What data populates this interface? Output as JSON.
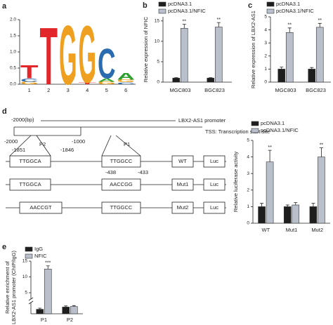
{
  "panel_labels": [
    "a",
    "b",
    "c",
    "d",
    "e"
  ],
  "chart_data": [
    {
      "type": "logo",
      "categories": [
        "1",
        "2",
        "3",
        "4",
        "5",
        "6"
      ],
      "ylim": [
        0,
        2
      ],
      "yticks": [
        {
          "value": 0,
          "label": "0.0"
        },
        {
          "value": 0.5,
          "label": "0.5"
        },
        {
          "value": 1,
          "label": "1.0"
        },
        {
          "value": 1.5,
          "label": "1.5"
        },
        {
          "value": 2,
          "label": "2.0"
        }
      ],
      "positions": [
        [
          {
            "letter": "G",
            "value": 0.08,
            "color": "#f0a020"
          },
          {
            "letter": "C",
            "value": 0.1,
            "color": "#2b6cb0"
          },
          {
            "letter": "T",
            "value": 0.42,
            "color": "#e3262a"
          }
        ],
        [
          {
            "letter": "T",
            "value": 1.82,
            "color": "#e3262a"
          }
        ],
        [
          {
            "letter": "G",
            "value": 1.88,
            "color": "#f0a020"
          }
        ],
        [
          {
            "letter": "T",
            "value": 0.05,
            "color": "#e3262a"
          },
          {
            "letter": "G",
            "value": 1.82,
            "color": "#f0a020"
          }
        ],
        [
          {
            "letter": "G",
            "value": 0.08,
            "color": "#f0a020"
          },
          {
            "letter": "A",
            "value": 0.1,
            "color": "#2ca02c"
          },
          {
            "letter": "C",
            "value": 0.95,
            "color": "#2b6cb0"
          }
        ],
        [
          {
            "letter": "C",
            "value": 0.06,
            "color": "#2b6cb0"
          },
          {
            "letter": "G",
            "value": 0.08,
            "color": "#f0a020"
          },
          {
            "letter": "A",
            "value": 0.22,
            "color": "#2ca02c"
          }
        ]
      ]
    },
    {
      "type": "bar",
      "categories": [
        "MGC803",
        "BGC823"
      ],
      "y_label": "Relative expression of NFIC",
      "ylim": [
        0,
        16
      ],
      "yticks": [
        0,
        5,
        10,
        15
      ],
      "series": [
        {
          "name": "pcDNA3.1",
          "color": "#1e1e1e",
          "values": [
            1,
            1
          ],
          "errors": [
            0.1,
            0.1
          ]
        },
        {
          "name": "pcDNA3.1/NFIC",
          "color": "#b9c0cc",
          "values": [
            13.2,
            13.5
          ],
          "errors": [
            1,
            1.1
          ],
          "significance": [
            "**",
            "**"
          ]
        }
      ]
    },
    {
      "type": "bar",
      "categories": [
        "MGC803",
        "BGC823"
      ],
      "y_label": "Relative expression of LBX2-AS1",
      "ylim": [
        0,
        5
      ],
      "yticks": [
        0,
        1,
        2,
        3,
        4,
        5
      ],
      "series": [
        {
          "name": "pcDNA3.1",
          "color": "#1e1e1e",
          "values": [
            1,
            1
          ],
          "errors": [
            0.15,
            0.12
          ]
        },
        {
          "name": "pcDNA3.1/NFIC",
          "color": "#b9c0cc",
          "values": [
            3.8,
            4.2
          ],
          "errors": [
            0.35,
            0.3
          ],
          "significance": [
            "**",
            "**"
          ]
        }
      ]
    },
    {
      "type": "bar",
      "categories": [
        "WT",
        "Mut1",
        "Mut2"
      ],
      "y_label": "Relative luciferase activity",
      "ylim": [
        0,
        5
      ],
      "yticks": [
        0,
        1,
        2,
        3,
        4,
        5
      ],
      "series": [
        {
          "name": "pcDNA3.1",
          "color": "#1e1e1e",
          "values": [
            1,
            1,
            1
          ],
          "errors": [
            0.2,
            0.1,
            0.2
          ]
        },
        {
          "name": "pcDNA3.1/NFIC",
          "color": "#b9c0cc",
          "values": [
            3.7,
            1.1,
            4
          ],
          "errors": [
            0.7,
            0.15,
            0.55
          ],
          "significance": [
            "**",
            null,
            "**"
          ]
        }
      ]
    },
    {
      "type": "bar",
      "categories": [
        "P1",
        "P2"
      ],
      "y_label": [
        "Relative enrichment of",
        "LBX2-AS1 promoter (ChIP/IgG)"
      ],
      "ylim": [
        0,
        15
      ],
      "axis_break": [
        0.1,
        3
      ],
      "yticks": [
        5,
        10,
        15
      ],
      "series": [
        {
          "name": "IgG",
          "color": "#1e1e1e",
          "values": [
            0.04,
            0.06
          ],
          "errors": [
            0.01,
            0.01
          ]
        },
        {
          "name": "NFIC",
          "color": "#b9c0cc",
          "values": [
            12.5,
            0.065
          ],
          "errors": [
            1,
            0.008
          ],
          "significance": [
            "***",
            null
          ]
        }
      ]
    }
  ],
  "diagram": {
    "scale_start": "-2000(bp)",
    "promoter": "LBX2-AS1 promoter",
    "tss": "TSS: Transcription start site",
    "ticks": [
      "-2000",
      "-1000"
    ],
    "sites": [
      {
        "name": "P2",
        "start": "-1851",
        "end": "-1846"
      },
      {
        "name": "P1",
        "start": "-438",
        "end": "-433"
      }
    ],
    "constructs": [
      {
        "sites": [
          "TTGGCA",
          "TTGGCC"
        ],
        "name": "WT",
        "reporter": "Luc"
      },
      {
        "sites": [
          "TTGGCA",
          "AACCGG"
        ],
        "name": "Mut1",
        "reporter": "Luc"
      },
      {
        "sites": [
          "AACCGT",
          "TTGGCC"
        ],
        "name": "Mut2",
        "reporter": "Luc"
      }
    ]
  }
}
